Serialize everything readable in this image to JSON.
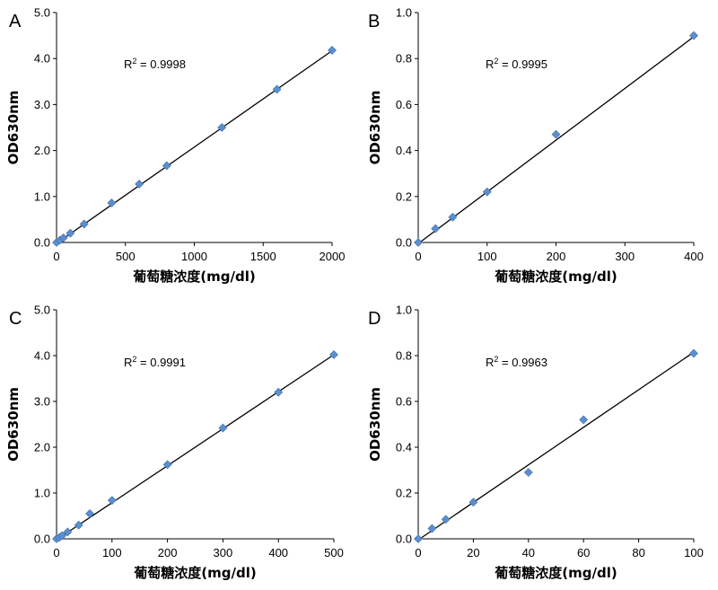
{
  "figure": {
    "colors": {
      "marker": "#5b8fcf",
      "line": "#000000"
    }
  },
  "chart_data": [
    {
      "panel": "A",
      "type": "scatter",
      "xlabel": "葡萄糖浓度(mg/dl)",
      "ylabel": "OD630nm",
      "xlim": [
        0,
        2000
      ],
      "ylim": [
        0,
        5.0
      ],
      "xticks": [
        "0",
        "500",
        "1000",
        "1500",
        "2000"
      ],
      "yticks": [
        "0.0",
        "1.0",
        "2.0",
        "3.0",
        "4.0",
        "5.0"
      ],
      "annotation": {
        "r2_prefix": "R",
        "r2_sup": "2",
        "r2_value": " = 0.9998"
      },
      "grid": false,
      "points": [
        {
          "x": 0,
          "y": 0.0
        },
        {
          "x": 25,
          "y": 0.05
        },
        {
          "x": 50,
          "y": 0.1
        },
        {
          "x": 100,
          "y": 0.2
        },
        {
          "x": 200,
          "y": 0.4
        },
        {
          "x": 400,
          "y": 0.86
        },
        {
          "x": 600,
          "y": 1.27
        },
        {
          "x": 800,
          "y": 1.67
        },
        {
          "x": 1200,
          "y": 2.5
        },
        {
          "x": 1600,
          "y": 3.33
        },
        {
          "x": 2000,
          "y": 4.18
        }
      ],
      "fit": {
        "x": [
          0,
          2000
        ],
        "y": [
          -0.02,
          4.17
        ]
      }
    },
    {
      "panel": "B",
      "type": "scatter",
      "xlabel": "葡萄糖浓度(mg/dl)",
      "ylabel": "OD630nm",
      "xlim": [
        0,
        400
      ],
      "ylim": [
        0,
        1.0
      ],
      "xticks": [
        "0",
        "100",
        "200",
        "300",
        "400"
      ],
      "yticks": [
        "0.0",
        "0.2",
        "0.4",
        "0.6",
        "0.8",
        "1.0"
      ],
      "annotation": {
        "r2_prefix": "R",
        "r2_sup": "2",
        "r2_value": " = 0.9995"
      },
      "grid": false,
      "points": [
        {
          "x": 0,
          "y": 0.0
        },
        {
          "x": 25,
          "y": 0.06
        },
        {
          "x": 50,
          "y": 0.11
        },
        {
          "x": 100,
          "y": 0.22
        },
        {
          "x": 200,
          "y": 0.47
        },
        {
          "x": 400,
          "y": 0.9
        }
      ],
      "fit": {
        "x": [
          0,
          400
        ],
        "y": [
          -0.005,
          0.895
        ]
      }
    },
    {
      "panel": "C",
      "type": "scatter",
      "xlabel": "葡萄糖浓度(mg/dl)",
      "ylabel": "OD630nm",
      "xlim": [
        0,
        500
      ],
      "ylim": [
        0,
        5.0
      ],
      "xticks": [
        "0",
        "100",
        "200",
        "300",
        "400",
        "500"
      ],
      "yticks": [
        "0.0",
        "1.0",
        "2.0",
        "3.0",
        "4.0",
        "5.0"
      ],
      "annotation": {
        "r2_prefix": "R",
        "r2_sup": "2",
        "r2_value": " = 0.9991"
      },
      "grid": false,
      "points": [
        {
          "x": 0,
          "y": 0.0
        },
        {
          "x": 5,
          "y": 0.03
        },
        {
          "x": 10,
          "y": 0.07
        },
        {
          "x": 20,
          "y": 0.15
        },
        {
          "x": 40,
          "y": 0.3
        },
        {
          "x": 60,
          "y": 0.55
        },
        {
          "x": 100,
          "y": 0.84
        },
        {
          "x": 200,
          "y": 1.62
        },
        {
          "x": 300,
          "y": 2.42
        },
        {
          "x": 400,
          "y": 3.2
        },
        {
          "x": 500,
          "y": 4.02
        }
      ],
      "fit": {
        "x": [
          0,
          500
        ],
        "y": [
          -0.02,
          4.02
        ]
      }
    },
    {
      "panel": "D",
      "type": "scatter",
      "xlabel": "葡萄糖浓度(mg/dl)",
      "ylabel": "OD630nm",
      "xlim": [
        0,
        100
      ],
      "ylim": [
        0,
        1.0
      ],
      "xticks": [
        "0",
        "20",
        "40",
        "60",
        "80",
        "100"
      ],
      "yticks": [
        "0.0",
        "0.2",
        "0.4",
        "0.6",
        "0.8",
        "1.0"
      ],
      "annotation": {
        "r2_prefix": "R",
        "r2_sup": "2",
        "r2_value": " = 0.9963"
      },
      "grid": false,
      "points": [
        {
          "x": 0,
          "y": 0.0
        },
        {
          "x": 5,
          "y": 0.045
        },
        {
          "x": 10,
          "y": 0.085
        },
        {
          "x": 20,
          "y": 0.16
        },
        {
          "x": 40,
          "y": 0.29
        },
        {
          "x": 60,
          "y": 0.52
        },
        {
          "x": 100,
          "y": 0.81
        }
      ],
      "fit": {
        "x": [
          0,
          100
        ],
        "y": [
          -0.005,
          0.815
        ]
      }
    }
  ]
}
